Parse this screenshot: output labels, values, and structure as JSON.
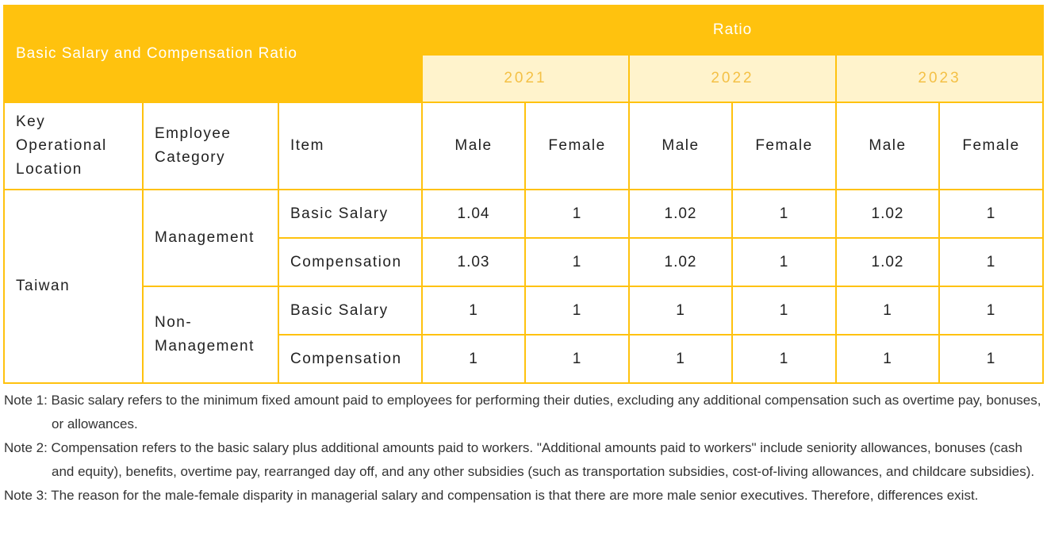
{
  "table": {
    "title": "Basic Salary and Compensation Ratio",
    "ratio_label": "Ratio",
    "years": [
      "2021",
      "2022",
      "2023"
    ],
    "column_headers": {
      "location": "Key Operational Location",
      "category": "Employee Category",
      "item": "Item",
      "male": "Male",
      "female": "Female"
    },
    "location": "Taiwan",
    "groups": [
      {
        "category": "Management",
        "rows": [
          {
            "item": "Basic Salary",
            "values": [
              "1.04",
              "1",
              "1.02",
              "1",
              "1.02",
              "1"
            ]
          },
          {
            "item": "Compensation",
            "values": [
              "1.03",
              "1",
              "1.02",
              "1",
              "1.02",
              "1"
            ]
          }
        ]
      },
      {
        "category": "Non-Management",
        "rows": [
          {
            "item": "Basic Salary",
            "values": [
              "1",
              "1",
              "1",
              "1",
              "1",
              "1"
            ]
          },
          {
            "item": "Compensation",
            "values": [
              "1",
              "1",
              "1",
              "1",
              "1",
              "1"
            ]
          }
        ]
      }
    ]
  },
  "notes": [
    "Note 1: Basic salary refers to the minimum fixed amount paid to employees for performing their duties, excluding any additional compensation such as overtime pay, bonuses, or allowances.",
    "Note 2: Compensation refers to the basic salary plus additional amounts paid to workers. \"Additional amounts paid to workers\" include seniority allowances, bonuses (cash and equity), benefits, overtime pay, rearranged day off, and any other subsidies (such as transportation subsidies, cost-of-living allowances, and childcare subsidies).",
    "Note 3: The reason for the male-female disparity in managerial salary and compensation is that there are more male senior executives. Therefore, differences exist."
  ],
  "colors": {
    "accent": "#FFC20E",
    "year_band": "#FFF3CC",
    "year_text": "#F4C045"
  }
}
